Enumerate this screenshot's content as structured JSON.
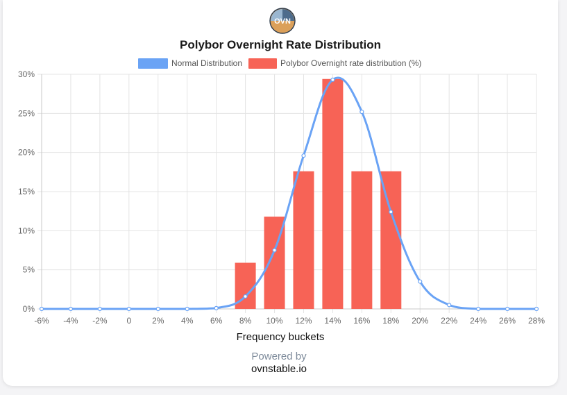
{
  "brand": {
    "logo_text": "OVN"
  },
  "footer": {
    "powered_by": "Powered by",
    "site": "ovnstable.io"
  },
  "chart_data": {
    "type": "bar",
    "title": "Polybor Overnight Rate Distribution",
    "xlabel": "Frequency buckets",
    "ylabel": "",
    "ylim": [
      0,
      30
    ],
    "y_ticks": [
      "0%",
      "5%",
      "10%",
      "15%",
      "20%",
      "25%",
      "30%"
    ],
    "categories": [
      "-6%",
      "-4%",
      "-2%",
      "0",
      "2%",
      "4%",
      "6%",
      "8%",
      "10%",
      "12%",
      "14%",
      "16%",
      "18%",
      "20%",
      "22%",
      "24%",
      "26%",
      "28%"
    ],
    "legend_position": "top",
    "grid": true,
    "series": [
      {
        "name": "Normal Distribution",
        "type": "line",
        "color": "#6aa3f5",
        "values": [
          0,
          0,
          0,
          0,
          0,
          0,
          0.1,
          1.6,
          7.5,
          19.6,
          29.3,
          25.2,
          12.4,
          3.5,
          0.5,
          0,
          0,
          0
        ]
      },
      {
        "name": "Polybor Overnight rate distribution (%)",
        "type": "bar",
        "color": "#f76356",
        "values": [
          0,
          0,
          0,
          0,
          0,
          0,
          0,
          5.9,
          11.8,
          17.6,
          29.4,
          17.6,
          17.6,
          0,
          0,
          0,
          0,
          0
        ]
      }
    ]
  }
}
